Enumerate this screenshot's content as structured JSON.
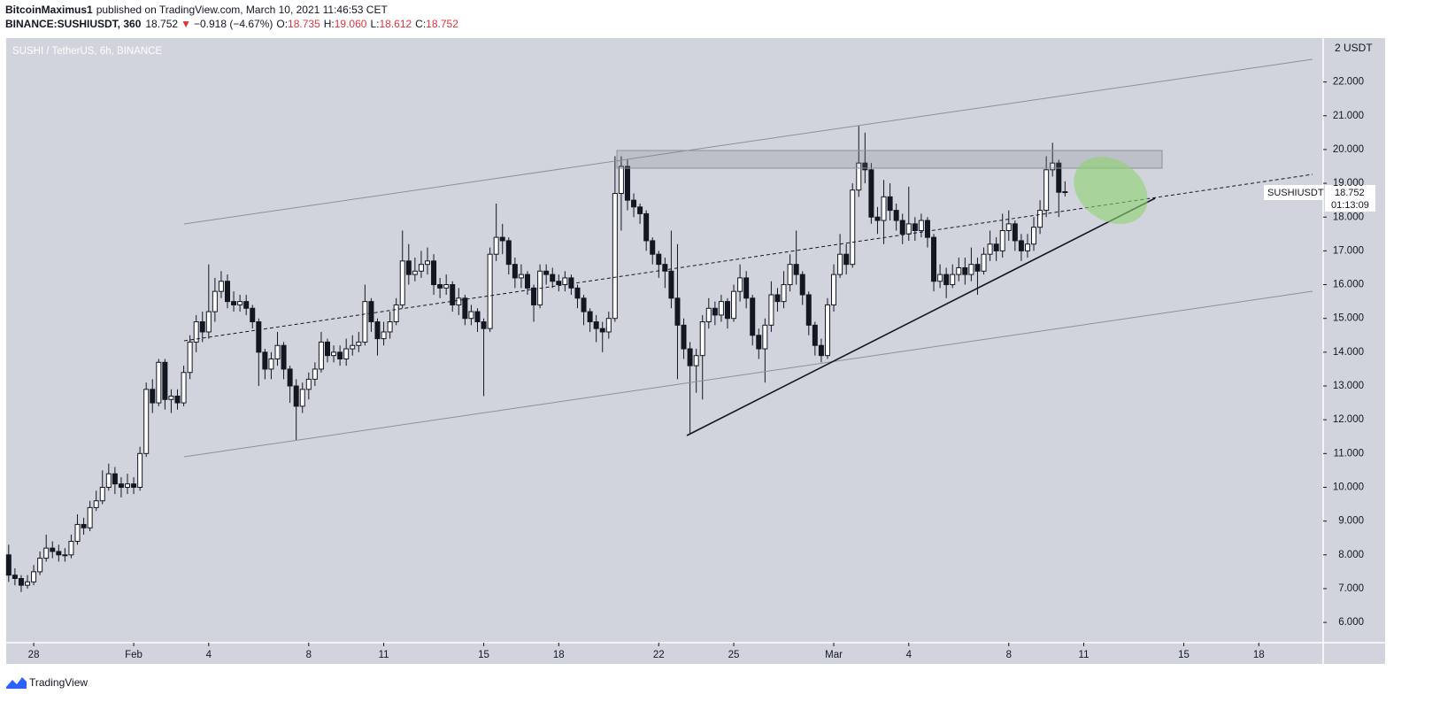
{
  "header": {
    "author": "BitcoinMaximus1",
    "published": "published on TradingView.com, March 10, 2021 11:46:53 CET",
    "symbol": "BINANCE:SUSHIUSDT, 360",
    "last": "18.752",
    "direction": "▼",
    "change": "−0.918 (−4.67%)",
    "o_label": "O:",
    "o": "18.735",
    "h_label": "H:",
    "h": "19.060",
    "l_label": "L:",
    "l": "18.612",
    "c_label": "C:",
    "c": "18.752"
  },
  "price_tag": {
    "symbol": "SUSHIUSDT",
    "price": "18.752",
    "countdown": "01:13:09"
  },
  "footer": {
    "brand": "TradingView"
  },
  "chart_data": {
    "type": "candlestick",
    "title": "SUSHI / TetherUS, 6h, BINANCE",
    "axis_unit": "2 USDT",
    "bull_color": "#ffffff",
    "bear_color": "#131722",
    "background": "#d1d4dc",
    "ylim": [
      5.4,
      23.3
    ],
    "xlim": [
      -0.4,
      210.3
    ],
    "yticks": [
      {
        "value": 6,
        "label": "6.000"
      },
      {
        "value": 7,
        "label": "7.000"
      },
      {
        "value": 8,
        "label": "8.000"
      },
      {
        "value": 9,
        "label": "9.000"
      },
      {
        "value": 10,
        "label": "10.000"
      },
      {
        "value": 11,
        "label": "11.000"
      },
      {
        "value": 12,
        "label": "12.000"
      },
      {
        "value": 13,
        "label": "13.000"
      },
      {
        "value": 14,
        "label": "14.000"
      },
      {
        "value": 15,
        "label": "15.000"
      },
      {
        "value": 16,
        "label": "16.000"
      },
      {
        "value": 17,
        "label": "17.000"
      },
      {
        "value": 18,
        "label": "18.000"
      },
      {
        "value": 19,
        "label": "19.000"
      },
      {
        "value": 20,
        "label": "20.000"
      },
      {
        "value": 21,
        "label": "21.000"
      },
      {
        "value": 22,
        "label": "22.000"
      }
    ],
    "xticks": [
      {
        "value": 4,
        "label": "28"
      },
      {
        "value": 20,
        "label": "Feb"
      },
      {
        "value": 32,
        "label": "4"
      },
      {
        "value": 48,
        "label": "8"
      },
      {
        "value": 60,
        "label": "11"
      },
      {
        "value": 76,
        "label": "15"
      },
      {
        "value": 88,
        "label": "18"
      },
      {
        "value": 104,
        "label": "22"
      },
      {
        "value": 116,
        "label": "25"
      },
      {
        "value": 132,
        "label": "Mar"
      },
      {
        "value": 144,
        "label": "4"
      },
      {
        "value": 160,
        "label": "8"
      },
      {
        "value": 172,
        "label": "11"
      },
      {
        "value": 188,
        "label": "15"
      },
      {
        "value": 200,
        "label": "18"
      }
    ],
    "open": [
      8.0,
      7.4,
      7.3,
      7.1,
      7.2,
      7.5,
      7.9,
      8.2,
      8.1,
      8.0,
      8.0,
      8.4,
      8.9,
      8.8,
      9.4,
      9.6,
      10.0,
      10.4,
      10.1,
      10.0,
      10.1,
      10.0,
      11.0,
      12.9,
      12.5,
      13.7,
      12.6,
      12.7,
      12.5,
      13.4,
      14.3,
      14.9,
      14.6,
      15.2,
      15.8,
      16.1,
      15.5,
      15.4,
      15.5,
      15.3,
      14.9,
      14.0,
      13.5,
      13.8,
      14.2,
      13.5,
      13.0,
      12.4,
      12.9,
      13.2,
      13.5,
      14.3,
      13.9,
      14.0,
      13.8,
      14.1,
      14.2,
      14.3,
      15.5,
      14.9,
      14.4,
      14.6,
      14.9,
      15.4,
      16.7,
      16.3,
      16.4,
      16.6,
      16.7,
      16.0,
      15.9,
      16.0,
      15.4,
      15.6,
      15.0,
      15.2,
      14.9,
      14.7,
      16.9,
      17.4,
      17.3,
      16.6,
      16.2,
      16.3,
      15.9,
      15.4,
      16.4,
      16.3,
      16.1,
      16.0,
      16.2,
      15.9,
      15.6,
      15.2,
      14.9,
      14.7,
      14.6,
      15.0,
      18.7,
      19.5,
      18.5,
      18.3,
      18.1,
      17.3,
      16.9,
      16.6,
      16.4,
      15.6,
      14.8,
      14.1,
      13.6,
      13.9,
      14.9,
      15.3,
      15.1,
      15.5,
      15.0,
      15.8,
      16.2,
      15.6,
      14.5,
      14.1,
      14.8,
      15.7,
      15.5,
      16.0,
      16.6,
      16.3,
      15.7,
      14.8,
      14.2,
      13.9,
      15.4,
      16.3,
      16.9,
      16.6,
      18.8,
      19.6,
      19.4,
      18.0,
      17.9,
      18.6,
      18.2,
      17.9,
      17.5,
      17.8,
      17.6,
      17.9,
      17.4,
      16.1,
      16.3,
      16.0,
      16.3,
      16.5,
      16.3,
      16.6,
      16.4,
      16.9,
      17.2,
      17.0,
      17.6,
      17.8,
      17.3,
      17.0,
      17.2,
      17.7,
      18.2,
      19.4,
      19.6,
      18.735
    ],
    "high": [
      8.3,
      7.6,
      7.4,
      7.4,
      7.7,
      8.1,
      8.6,
      8.4,
      8.3,
      8.2,
      8.6,
      9.2,
      9.1,
      9.6,
      9.9,
      10.5,
      10.7,
      10.6,
      10.3,
      10.4,
      10.3,
      11.2,
      13.1,
      13.2,
      13.8,
      13.8,
      12.9,
      12.9,
      13.6,
      14.5,
      15.1,
      15.2,
      16.6,
      16.2,
      16.4,
      16.3,
      15.8,
      15.7,
      15.7,
      15.4,
      15.0,
      14.1,
      14.0,
      14.6,
      14.3,
      13.6,
      13.2,
      13.1,
      13.4,
      13.7,
      14.6,
      14.4,
      14.2,
      14.2,
      14.4,
      14.5,
      14.6,
      16.0,
      15.6,
      15.0,
      14.9,
      15.2,
      15.6,
      17.6,
      17.2,
      16.8,
      17.0,
      17.1,
      16.9,
      16.2,
      16.3,
      16.1,
      15.9,
      15.7,
      15.4,
      15.3,
      15.0,
      17.1,
      18.4,
      17.8,
      17.4,
      16.8,
      16.6,
      16.4,
      16.0,
      16.6,
      16.6,
      16.5,
      16.3,
      16.4,
      16.3,
      16.0,
      15.7,
      15.3,
      15.1,
      14.9,
      15.2,
      19.8,
      19.8,
      19.7,
      18.7,
      18.4,
      18.2,
      17.4,
      17.0,
      16.8,
      17.6,
      17.2,
      15.0,
      14.3,
      14.1,
      15.1,
      15.6,
      15.5,
      15.7,
      15.6,
      16.0,
      16.6,
      16.4,
      15.7,
      14.7,
      15.0,
      16.1,
      15.9,
      16.4,
      16.9,
      17.6,
      16.4,
      15.8,
      14.9,
      14.4,
      15.6,
      16.6,
      17.5,
      17.2,
      19.0,
      20.7,
      20.5,
      19.6,
      18.3,
      19.1,
      19.0,
      18.4,
      18.1,
      18.9,
      18.0,
      18.1,
      18.0,
      17.5,
      16.6,
      16.5,
      16.6,
      16.8,
      16.8,
      17.1,
      16.8,
      17.1,
      17.6,
      17.4,
      18.1,
      18.2,
      17.9,
      17.5,
      17.5,
      18.0,
      18.5,
      19.8,
      20.2,
      19.7,
      19.06
    ],
    "low": [
      7.2,
      7.1,
      6.9,
      7.0,
      7.1,
      7.4,
      7.8,
      7.9,
      7.8,
      7.8,
      7.9,
      8.3,
      8.6,
      8.7,
      9.3,
      9.5,
      9.9,
      9.8,
      9.7,
      9.8,
      9.8,
      9.9,
      10.9,
      12.2,
      12.4,
      12.3,
      12.2,
      12.3,
      12.4,
      13.2,
      14.0,
      14.3,
      14.4,
      14.9,
      15.6,
      15.3,
      15.2,
      15.2,
      15.1,
      14.7,
      13.0,
      13.2,
      13.2,
      13.6,
      13.2,
      12.5,
      11.4,
      12.2,
      12.6,
      13.0,
      13.4,
      13.7,
      13.7,
      13.6,
      13.6,
      13.9,
      14.0,
      14.2,
      14.6,
      13.9,
      14.2,
      14.4,
      14.8,
      15.3,
      16.0,
      16.1,
      16.2,
      16.3,
      15.7,
      15.6,
      15.7,
      15.2,
      15.1,
      14.8,
      14.8,
      14.6,
      12.7,
      14.6,
      16.7,
      16.9,
      16.3,
      15.9,
      15.9,
      15.7,
      14.9,
      15.3,
      16.0,
      15.9,
      15.8,
      15.8,
      15.7,
      15.3,
      14.8,
      14.6,
      14.3,
      14.0,
      14.4,
      14.9,
      17.6,
      18.2,
      18.0,
      17.8,
      17.0,
      16.6,
      16.2,
      15.9,
      15.3,
      13.2,
      13.8,
      11.6,
      12.8,
      12.6,
      14.7,
      14.8,
      14.9,
      14.7,
      14.9,
      15.5,
      15.3,
      14.2,
      13.8,
      13.1,
      14.6,
      15.2,
      15.3,
      15.8,
      16.0,
      15.4,
      14.5,
      13.9,
      13.7,
      13.8,
      15.2,
      16.2,
      16.3,
      16.5,
      18.6,
      19.0,
      17.8,
      17.5,
      17.2,
      17.9,
      17.6,
      17.2,
      17.3,
      17.3,
      17.4,
      17.1,
      15.8,
      15.9,
      15.6,
      15.9,
      16.1,
      16.0,
      16.1,
      15.7,
      16.3,
      16.7,
      16.7,
      16.8,
      17.3,
      17.0,
      16.7,
      16.8,
      17.0,
      17.5,
      18.0,
      19.2,
      18.0,
      18.612
    ],
    "close": [
      7.4,
      7.3,
      7.1,
      7.2,
      7.5,
      7.9,
      8.2,
      8.1,
      8.0,
      8.0,
      8.4,
      8.9,
      8.8,
      9.4,
      9.6,
      10.0,
      10.4,
      10.1,
      10.0,
      10.1,
      10.0,
      11.0,
      12.9,
      12.5,
      13.7,
      12.6,
      12.7,
      12.5,
      13.4,
      14.3,
      14.9,
      14.6,
      15.2,
      15.8,
      16.1,
      15.5,
      15.4,
      15.5,
      15.3,
      14.9,
      14.0,
      13.5,
      13.8,
      14.2,
      13.5,
      13.0,
      12.4,
      12.9,
      13.2,
      13.5,
      14.3,
      13.9,
      14.0,
      13.8,
      14.1,
      14.2,
      14.3,
      15.5,
      14.9,
      14.4,
      14.6,
      14.9,
      15.4,
      16.7,
      16.3,
      16.4,
      16.6,
      16.7,
      16.0,
      15.9,
      16.0,
      15.4,
      15.6,
      15.0,
      15.2,
      14.9,
      14.7,
      16.9,
      17.4,
      17.3,
      16.6,
      16.2,
      16.3,
      15.9,
      15.4,
      16.4,
      16.3,
      16.1,
      16.0,
      16.2,
      15.9,
      15.6,
      15.2,
      14.9,
      14.7,
      14.6,
      15.0,
      18.7,
      19.5,
      18.5,
      18.3,
      18.1,
      17.3,
      16.9,
      16.6,
      16.4,
      15.6,
      14.8,
      14.1,
      13.6,
      13.9,
      14.9,
      15.3,
      15.1,
      15.5,
      15.0,
      15.8,
      16.2,
      15.6,
      14.5,
      14.1,
      14.8,
      15.7,
      15.5,
      16.0,
      16.6,
      16.3,
      15.7,
      14.8,
      14.2,
      13.9,
      15.4,
      16.3,
      16.9,
      16.6,
      18.8,
      19.6,
      19.4,
      18.0,
      17.9,
      18.6,
      18.2,
      17.9,
      17.5,
      17.8,
      17.6,
      17.9,
      17.4,
      16.1,
      16.3,
      16.0,
      16.3,
      16.5,
      16.3,
      16.6,
      16.4,
      16.9,
      17.2,
      17.0,
      17.6,
      17.8,
      17.3,
      17.0,
      17.2,
      17.7,
      18.2,
      19.4,
      19.6,
      18.735,
      18.752
    ]
  }
}
